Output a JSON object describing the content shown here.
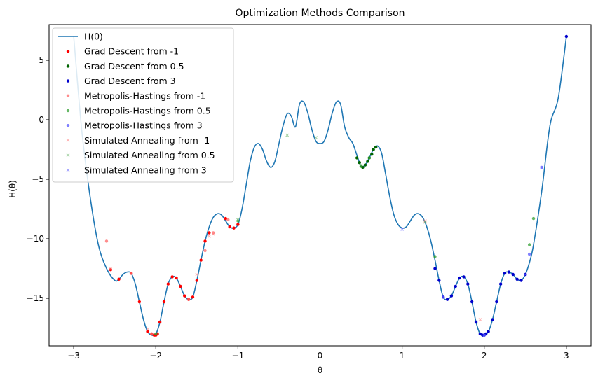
{
  "chart_data": {
    "type": "line",
    "title": "Optimization Methods Comparison",
    "xlabel": "θ",
    "ylabel": "H(θ)",
    "xlim": [
      -3.3,
      3.3
    ],
    "ylim": [
      -19.0,
      8.0
    ],
    "xticks": [
      -3,
      -2,
      -1,
      0,
      1,
      2,
      3
    ],
    "xtick_labels": [
      "−3",
      "−2",
      "−1",
      "0",
      "1",
      "2",
      "3"
    ],
    "yticks": [
      5,
      0,
      -5,
      -10,
      -15
    ],
    "ytick_labels": [
      "5",
      "0",
      "−5",
      "−10",
      "−15"
    ],
    "grid": false,
    "legend_position": "top-left",
    "curve": {
      "name": "H(θ)",
      "color": "#1f77b4",
      "x": [
        -3.0,
        -2.9,
        -2.8,
        -2.7,
        -2.6,
        -2.5,
        -2.45,
        -2.4,
        -2.35,
        -2.3,
        -2.25,
        -2.2,
        -2.15,
        -2.1,
        -2.05,
        -2.0,
        -1.95,
        -1.9,
        -1.85,
        -1.8,
        -1.75,
        -1.7,
        -1.65,
        -1.6,
        -1.55,
        -1.5,
        -1.45,
        -1.4,
        -1.35,
        -1.3,
        -1.25,
        -1.2,
        -1.15,
        -1.1,
        -1.05,
        -1.0,
        -0.95,
        -0.9,
        -0.85,
        -0.8,
        -0.75,
        -0.7,
        -0.65,
        -0.6,
        -0.55,
        -0.5,
        -0.45,
        -0.4,
        -0.35,
        -0.3,
        -0.25,
        -0.2,
        -0.15,
        -0.1,
        -0.05,
        0.0,
        0.05,
        0.1,
        0.15,
        0.2,
        0.25,
        0.3,
        0.35,
        0.4,
        0.45,
        0.5,
        0.55,
        0.6,
        0.65,
        0.7,
        0.75,
        0.8,
        0.85,
        0.9,
        0.95,
        1.0,
        1.05,
        1.1,
        1.15,
        1.2,
        1.25,
        1.3,
        1.35,
        1.4,
        1.45,
        1.5,
        1.55,
        1.6,
        1.65,
        1.7,
        1.75,
        1.8,
        1.85,
        1.9,
        1.95,
        2.0,
        2.05,
        2.1,
        2.15,
        2.2,
        2.25,
        2.3,
        2.35,
        2.4,
        2.45,
        2.5,
        2.55,
        2.6,
        2.7,
        2.8,
        2.9,
        3.0
      ],
      "y": [
        7.0,
        -1.0,
        -6.5,
        -10.5,
        -12.5,
        -13.5,
        -13.4,
        -13.0,
        -12.8,
        -12.9,
        -13.8,
        -15.3,
        -16.8,
        -17.8,
        -18.1,
        -18.0,
        -17.0,
        -15.3,
        -13.8,
        -13.2,
        -13.3,
        -14.0,
        -14.8,
        -15.1,
        -14.9,
        -13.5,
        -11.8,
        -10.2,
        -9.0,
        -8.2,
        -7.9,
        -8.0,
        -8.5,
        -9.0,
        -9.1,
        -8.8,
        -7.5,
        -5.5,
        -3.5,
        -2.3,
        -2.0,
        -2.5,
        -3.5,
        -4.0,
        -3.5,
        -2.0,
        -0.5,
        0.5,
        0.3,
        -0.6,
        1.3,
        1.5,
        0.6,
        -0.8,
        -1.8,
        -2.0,
        -1.8,
        -0.8,
        0.6,
        1.5,
        1.3,
        -0.6,
        -1.5,
        -2.0,
        -3.0,
        -3.9,
        -3.8,
        -3.2,
        -2.5,
        -2.2,
        -2.8,
        -4.6,
        -6.5,
        -8.0,
        -8.8,
        -9.1,
        -9.0,
        -8.5,
        -8.0,
        -7.9,
        -8.2,
        -9.0,
        -10.2,
        -11.8,
        -13.5,
        -14.9,
        -15.1,
        -14.8,
        -14.0,
        -13.3,
        -13.2,
        -13.8,
        -15.3,
        -17.0,
        -18.0,
        -18.1,
        -17.8,
        -16.8,
        -15.3,
        -13.8,
        -12.9,
        -12.8,
        -13.0,
        -13.4,
        -13.5,
        -13.0,
        -12.0,
        -10.5,
        -6.0,
        -0.5,
        1.8,
        7.0
      ]
    },
    "series": [
      {
        "name": "Grad Descent from -1",
        "color": "#ff0000",
        "marker": "circle",
        "alpha": 1.0,
        "x": [
          -2.55,
          -2.45,
          -2.3,
          -2.2,
          -2.1,
          -2.05,
          -2.02,
          -2.0,
          -1.98,
          -1.95,
          -1.9,
          -1.85,
          -1.8,
          -1.75,
          -1.7,
          -1.65,
          -1.6,
          -1.55,
          -1.5,
          -1.45,
          -1.4,
          -1.35,
          -1.15,
          -1.1,
          -1.05,
          -1.0
        ],
        "y": [
          -12.6,
          -13.4,
          -12.9,
          -15.3,
          -17.8,
          -18.0,
          -18.1,
          -18.1,
          -18.0,
          -17.0,
          -15.3,
          -13.8,
          -13.2,
          -13.3,
          -14.0,
          -14.8,
          -15.1,
          -14.9,
          -13.5,
          -11.8,
          -10.2,
          -9.5,
          -8.3,
          -9.0,
          -9.1,
          -8.8
        ]
      },
      {
        "name": "Grad Descent from 0.5",
        "color": "#006400",
        "marker": "circle",
        "alpha": 1.0,
        "x": [
          0.45,
          0.48,
          0.5,
          0.52,
          0.55,
          0.58,
          0.6,
          0.63,
          0.65,
          0.68
        ],
        "y": [
          -3.2,
          -3.6,
          -3.9,
          -4.0,
          -3.8,
          -3.5,
          -3.2,
          -2.9,
          -2.5,
          -2.3
        ]
      },
      {
        "name": "Grad Descent from 3",
        "color": "#0000cd",
        "marker": "circle",
        "alpha": 1.0,
        "x": [
          1.4,
          1.45,
          1.5,
          1.55,
          1.6,
          1.65,
          1.7,
          1.75,
          1.8,
          1.85,
          1.9,
          1.95,
          1.98,
          2.0,
          2.02,
          2.05,
          2.1,
          2.15,
          2.2,
          2.25,
          2.3,
          2.35,
          2.4,
          2.45,
          2.5,
          3.0
        ],
        "y": [
          -12.5,
          -13.5,
          -14.9,
          -15.1,
          -14.8,
          -14.0,
          -13.3,
          -13.2,
          -13.8,
          -15.3,
          -17.0,
          -18.0,
          -18.1,
          -18.1,
          -18.0,
          -17.8,
          -16.8,
          -15.3,
          -13.8,
          -12.9,
          -12.8,
          -13.0,
          -13.4,
          -13.5,
          -13.0,
          7.0
        ]
      },
      {
        "name": "Metropolis-Hastings from -1",
        "color": "#ff6666",
        "marker": "circle",
        "alpha": 0.75,
        "x": [
          -2.6,
          -2.3,
          -2.05,
          -1.6,
          -1.4,
          -1.3,
          -1.12
        ],
        "y": [
          -10.2,
          -12.9,
          -18.0,
          -15.1,
          -11.0,
          -9.5,
          -8.4
        ]
      },
      {
        "name": "Metropolis-Hastings from 0.5",
        "color": "#33a033",
        "marker": "circle",
        "alpha": 0.75,
        "x": [
          -2.0,
          -1.0,
          0.5,
          0.6,
          1.4,
          2.55,
          2.6
        ],
        "y": [
          -18.0,
          -8.5,
          -3.9,
          -3.2,
          -11.5,
          -10.5,
          -8.3
        ]
      },
      {
        "name": "Metropolis-Hastings from 3",
        "color": "#5555ff",
        "marker": "circle",
        "alpha": 0.75,
        "x": [
          1.5,
          2.0,
          2.55,
          2.7
        ],
        "y": [
          -14.9,
          -18.1,
          -11.3,
          -4.0
        ]
      },
      {
        "name": "Simulated Annealing from -1",
        "color": "#ff8080",
        "marker": "x",
        "alpha": 0.6,
        "x": [
          -2.55,
          -2.1,
          -1.5,
          -1.35,
          -1.3,
          1.28,
          1.95
        ],
        "y": [
          -12.5,
          -17.6,
          -13.0,
          -9.8,
          -9.6,
          -8.5,
          -16.8
        ]
      },
      {
        "name": "Simulated Annealing from 0.5",
        "color": "#66b266",
        "marker": "x",
        "alpha": 0.6,
        "x": [
          -1.0,
          -0.4,
          -0.05,
          0.5,
          1.28
        ],
        "y": [
          -8.4,
          -1.3,
          -1.5,
          -3.8,
          -8.6
        ]
      },
      {
        "name": "Simulated Annealing from 3",
        "color": "#6a6aff",
        "marker": "x",
        "alpha": 0.6,
        "x": [
          1.0,
          2.5,
          2.7
        ],
        "y": [
          -9.2,
          -13.0,
          -4.0
        ]
      }
    ]
  }
}
